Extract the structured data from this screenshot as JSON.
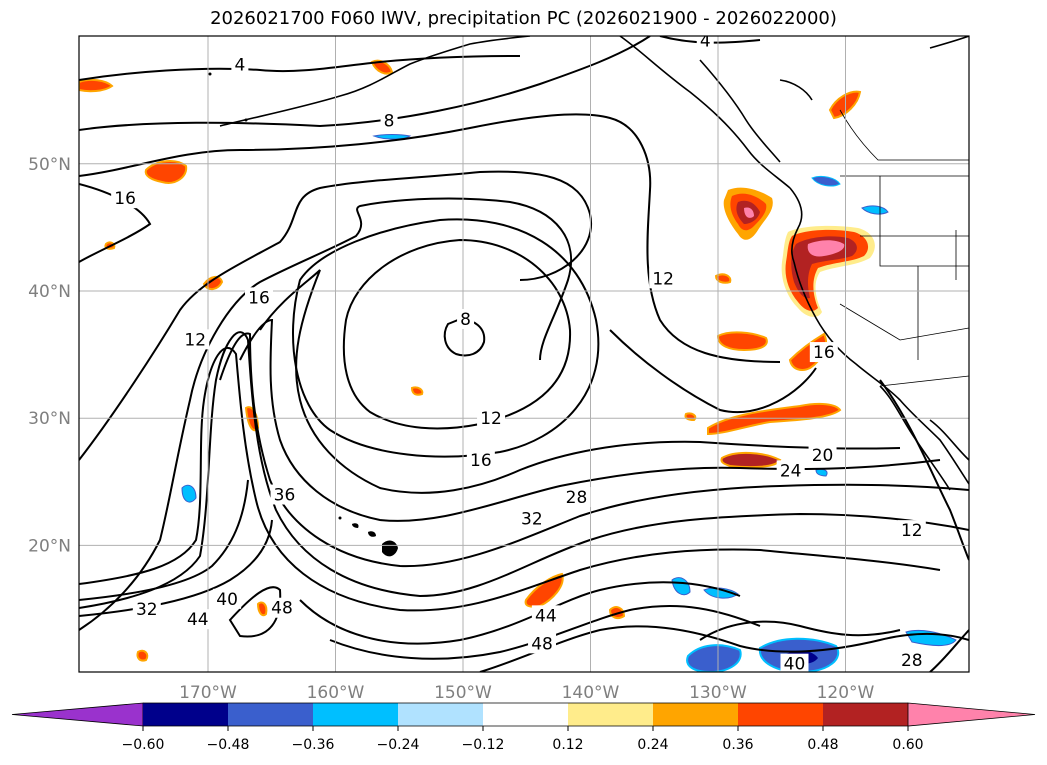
{
  "title": "2026021700 F060 IWV, precipitation PC (2026021900 - 2026022000)",
  "map": {
    "lon_ticks": [
      {
        "value": -170,
        "label": "170°W"
      },
      {
        "value": -160,
        "label": "160°W"
      },
      {
        "value": -150,
        "label": "150°W"
      },
      {
        "value": -140,
        "label": "140°W"
      },
      {
        "value": -130,
        "label": "130°W"
      },
      {
        "value": -120,
        "label": "120°W"
      }
    ],
    "lat_ticks": [
      {
        "value": 20,
        "label": "20°N"
      },
      {
        "value": 30,
        "label": "30°N"
      },
      {
        "value": 40,
        "label": "40°N"
      },
      {
        "value": 50,
        "label": "50°N"
      }
    ],
    "contour_labels": [
      {
        "text": "4",
        "lon": -167.5,
        "lat": 57.8
      },
      {
        "text": "4",
        "lon": -131.0,
        "lat": 59.7
      },
      {
        "text": "8",
        "lon": -155.8,
        "lat": 53.4
      },
      {
        "text": "16",
        "lon": -176.5,
        "lat": 47.3
      },
      {
        "text": "16",
        "lon": -166.0,
        "lat": 39.5
      },
      {
        "text": "12",
        "lon": -171.0,
        "lat": 36.2
      },
      {
        "text": "8",
        "lon": -149.8,
        "lat": 37.8
      },
      {
        "text": "12",
        "lon": -147.8,
        "lat": 30.0
      },
      {
        "text": "12",
        "lon": -134.3,
        "lat": 41.0
      },
      {
        "text": "16",
        "lon": -148.6,
        "lat": 26.7
      },
      {
        "text": "16",
        "lon": -121.7,
        "lat": 35.2
      },
      {
        "text": "20",
        "lon": -121.8,
        "lat": 27.1
      },
      {
        "text": "24",
        "lon": -124.3,
        "lat": 25.9
      },
      {
        "text": "28",
        "lon": -141.1,
        "lat": 23.8
      },
      {
        "text": "32",
        "lon": -144.6,
        "lat": 22.1
      },
      {
        "text": "36",
        "lon": -164.0,
        "lat": 24.0
      },
      {
        "text": "40",
        "lon": -168.5,
        "lat": 15.8
      },
      {
        "text": "44",
        "lon": -170.8,
        "lat": 14.2
      },
      {
        "text": "44",
        "lon": -143.5,
        "lat": 14.5
      },
      {
        "text": "48",
        "lon": -164.2,
        "lat": 15.1
      },
      {
        "text": "48",
        "lon": -143.8,
        "lat": 12.3
      },
      {
        "text": "40",
        "lon": -124.0,
        "lat": 10.7
      },
      {
        "text": "32",
        "lon": -174.8,
        "lat": 15.0
      },
      {
        "text": "12",
        "lon": -114.8,
        "lat": 21.2
      },
      {
        "text": "28",
        "lon": -114.8,
        "lat": 11.0
      }
    ]
  },
  "colorbar": {
    "ticks": [
      "−0.60",
      "−0.48",
      "−0.36",
      "−0.24",
      "−0.12",
      "0.12",
      "0.24",
      "0.36",
      "0.48",
      "0.60"
    ],
    "colors": [
      "#9a32cd",
      "#00008b",
      "#3a5fcd",
      "#00bfff",
      "#b0e2ff",
      "#ffffff",
      "#ffec8b",
      "#ffa500",
      "#ff4500",
      "#b22222",
      "#ff82ab"
    ]
  },
  "colors": {
    "positive_low": "#ffec8b",
    "positive_mid": "#ffa500",
    "positive_high": "#ff4500",
    "positive_vhigh": "#b22222",
    "positive_max": "#ff82ab",
    "negative_low": "#b0e2ff",
    "negative_mid": "#00bfff",
    "negative_high": "#3a5fcd",
    "negative_vhigh": "#00008b"
  }
}
